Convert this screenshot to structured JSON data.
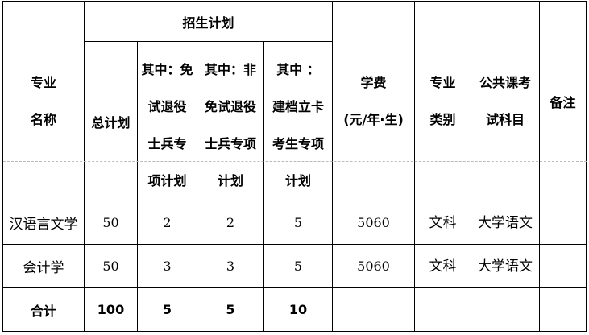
{
  "header": {
    "major_name": [
      "专业",
      "名称"
    ],
    "plan_group": "招生计划",
    "total_plan": "总计划",
    "sub1": [
      "其中：免",
      "试退役",
      "士兵专",
      "项计划"
    ],
    "sub2": [
      "其中：非",
      "免试退役",
      "士兵专项",
      "计划"
    ],
    "sub3": [
      "其中 ：",
      "建档立卡",
      "考生专项",
      "计划"
    ],
    "tuition": [
      "学费",
      "(元/年·生)"
    ],
    "category": [
      "专业",
      "类别"
    ],
    "exam": [
      "公共课考",
      "试科目"
    ],
    "remark": "备注"
  },
  "rows": [
    {
      "major": "汉语言文学",
      "total": "50",
      "s1": "2",
      "s2": "2",
      "s3": "5",
      "tuition": "5060",
      "category": "文科",
      "exam": "大学语文",
      "remark": ""
    },
    {
      "major": "会计学",
      "total": "50",
      "s1": "3",
      "s2": "3",
      "s3": "5",
      "tuition": "5060",
      "category": "文科",
      "exam": "大学语文",
      "remark": ""
    }
  ],
  "total": {
    "label": "合计",
    "total": "100",
    "s1": "5",
    "s2": "5",
    "s3": "10"
  }
}
